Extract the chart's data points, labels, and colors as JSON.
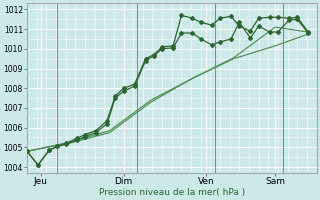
{
  "background_color": "#cde8e8",
  "grid_color": "#ffffff",
  "line_color_dark": "#2d6632",
  "line_color_light": "#4d8f52",
  "xlabel": "Pression niveau de la mer( hPa )",
  "ylim": [
    1003.7,
    1012.3
  ],
  "yticks": [
    1004,
    1005,
    1006,
    1007,
    1008,
    1009,
    1010,
    1011,
    1012
  ],
  "xtick_labels": [
    "Jeu",
    "Dim",
    "Ven",
    "Sam"
  ],
  "xtick_positions": [
    0.5,
    3.5,
    6.5,
    9.0
  ],
  "vline_positions": [
    1.1,
    4.0,
    6.8,
    9.3
  ],
  "series1_x": [
    0,
    0.4,
    0.8,
    1.1,
    1.4,
    1.8,
    2.1,
    2.5,
    2.9,
    3.2,
    3.5,
    3.9,
    4.3,
    4.6,
    4.9,
    5.3,
    5.6,
    6.0,
    6.3,
    6.7,
    7.0,
    7.4,
    7.7,
    8.1,
    8.4,
    8.8,
    9.1,
    9.5,
    9.8,
    10.2
  ],
  "series1_y": [
    1004.8,
    1004.1,
    1004.85,
    1005.05,
    1005.15,
    1005.35,
    1005.55,
    1005.75,
    1006.2,
    1007.5,
    1007.85,
    1008.1,
    1009.4,
    1009.65,
    1010.0,
    1010.05,
    1010.8,
    1010.8,
    1010.5,
    1010.2,
    1010.35,
    1010.5,
    1011.35,
    1010.55,
    1011.15,
    1010.85,
    1010.85,
    1011.45,
    1011.5,
    1010.8
  ],
  "series2_x": [
    0,
    0.4,
    0.8,
    1.1,
    1.4,
    1.8,
    2.1,
    2.5,
    2.9,
    3.2,
    3.5,
    3.9,
    4.3,
    4.6,
    4.9,
    5.3,
    5.6,
    6.0,
    6.3,
    6.7,
    7.0,
    7.4,
    7.7,
    8.1,
    8.4,
    8.8,
    9.1,
    9.5,
    9.8,
    10.2
  ],
  "series2_y": [
    1004.8,
    1004.1,
    1004.85,
    1005.05,
    1005.2,
    1005.45,
    1005.65,
    1005.85,
    1006.35,
    1007.6,
    1008.0,
    1008.2,
    1009.5,
    1009.7,
    1010.1,
    1010.15,
    1011.7,
    1011.55,
    1011.35,
    1011.2,
    1011.55,
    1011.65,
    1011.15,
    1010.9,
    1011.55,
    1011.6,
    1011.6,
    1011.55,
    1011.6,
    1010.85
  ],
  "series3_x": [
    0,
    1.5,
    3.0,
    4.5,
    6.0,
    7.5,
    9.0,
    10.2
  ],
  "series3_y": [
    1004.8,
    1005.2,
    1005.75,
    1007.3,
    1008.5,
    1009.5,
    1010.15,
    1010.75
  ],
  "series4_x": [
    0,
    1.5,
    3.0,
    4.5,
    6.0,
    7.5,
    9.0,
    10.2
  ],
  "series4_y": [
    1004.8,
    1005.25,
    1005.85,
    1007.4,
    1008.5,
    1009.55,
    1011.1,
    1010.85
  ]
}
